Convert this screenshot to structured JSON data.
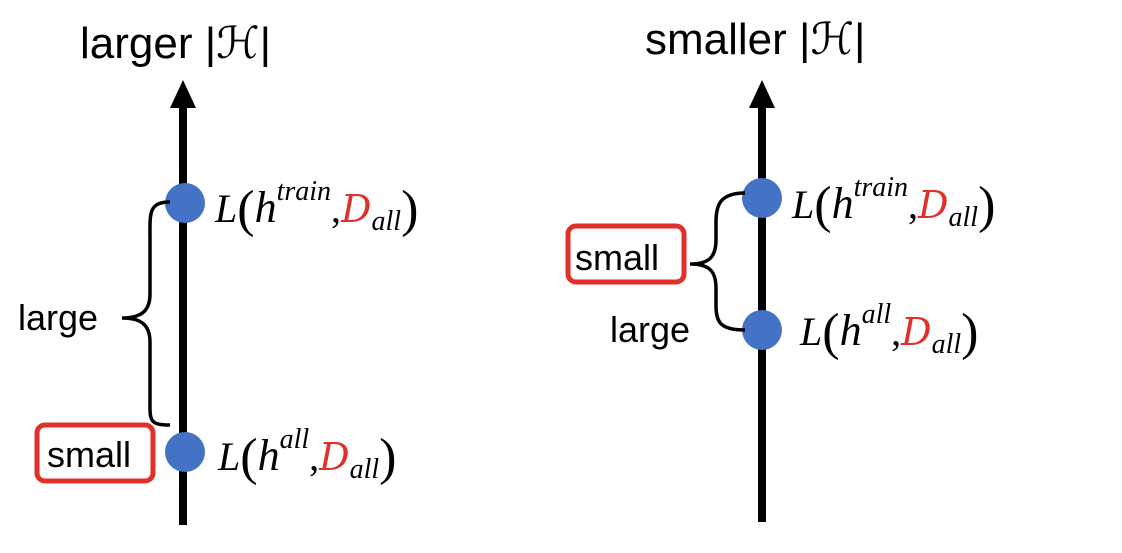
{
  "colors": {
    "blue_h": "#1010e0",
    "red_d": "#e0302a",
    "dot": "#4472c4",
    "box": "#e0302a",
    "axis": "#000000"
  },
  "left": {
    "title_prefix": "larger ",
    "title_set": "|ℋ|",
    "gap_label": "large",
    "boxed_label": "small",
    "top_point": {
      "L": "L",
      "h": "h",
      "h_sup": "train",
      "comma": ",",
      "D": "D",
      "D_sub": "all"
    },
    "bottom_point": {
      "L": "L",
      "h": "h",
      "h_sup": "all",
      "comma": ",",
      "D": "D",
      "D_sub": "all"
    }
  },
  "right": {
    "title_prefix": "smaller ",
    "title_set": "|ℋ|",
    "gap_label": "large",
    "boxed_label": "small",
    "top_point": {
      "L": "L",
      "h": "h",
      "h_sup": "train",
      "comma": ",",
      "D": "D",
      "D_sub": "all"
    },
    "bottom_point": {
      "L": "L",
      "h": "h",
      "h_sup": "all",
      "comma": ",",
      "D": "D",
      "D_sub": "all"
    }
  }
}
